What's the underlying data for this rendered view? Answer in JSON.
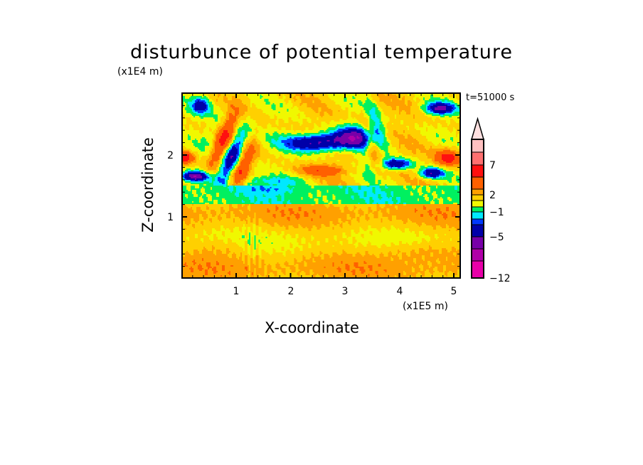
{
  "chart_data": {
    "type": "heatmap",
    "subtype": "filled-contour",
    "title": "disturbunce of potential temperature",
    "xlabel": "X-coordinate",
    "ylabel": "Z-coordinate",
    "x_unit": "(x1E5 m)",
    "z_unit": "(x1E4 m)",
    "time_label": "t=51000 s",
    "xlim": [
      0,
      5.12
    ],
    "ylim": [
      0,
      3.0
    ],
    "x_ticks": [
      "1",
      "2",
      "3",
      "4",
      "5"
    ],
    "y_ticks": [
      "1",
      "2"
    ],
    "colorbar": {
      "tick_labels": [
        "7",
        "2",
        "−1",
        "−5",
        "−12"
      ],
      "colors_low_to_high": [
        "#e800a8",
        "#b000a8",
        "#7800a8",
        "#0000a8",
        "#0038ff",
        "#00e8ff",
        "#00f060",
        "#f0f800",
        "#ffd000",
        "#ffa000",
        "#ff6000",
        "#ff1010",
        "#ff7070",
        "#ffc0c0"
      ],
      "over_color": "#ffe0e0",
      "extend": "max"
    }
  }
}
